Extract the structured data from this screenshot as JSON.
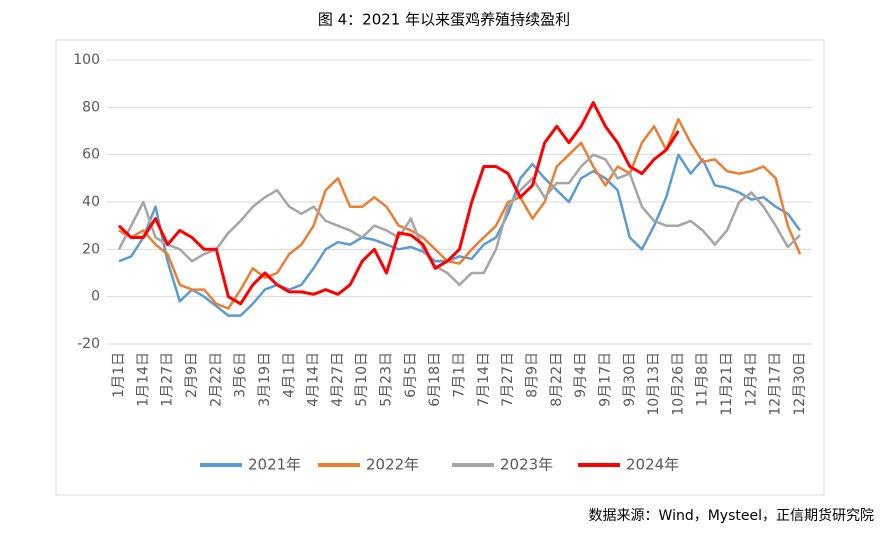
{
  "chart_data": {
    "type": "line",
    "title": "图 4：2021 年以来蛋鸡养殖持续盈利",
    "source": "数据来源：Wind，Mysteel，正信期货研究院",
    "categories": [
      "1月1日",
      null,
      "1月14日",
      null,
      "1月27日",
      null,
      "2月9日",
      null,
      "2月22日",
      null,
      "3月6日",
      null,
      "3月19日",
      null,
      "4月1日",
      null,
      "4月14日",
      null,
      "4月27日",
      null,
      "5月10日",
      null,
      "5月23日",
      null,
      "6月5日",
      null,
      "6月18日",
      null,
      "7月1日",
      null,
      "7月14日",
      null,
      "7月27日",
      null,
      "8月9日",
      null,
      "8月22日",
      null,
      "9月4日",
      null,
      "9月17日",
      null,
      "9月30日",
      null,
      "10月13日",
      null,
      "10月26日",
      null,
      "11月8日",
      null,
      "11月21日",
      null,
      "12月4日",
      null,
      "12月17日",
      null,
      "12月30日"
    ],
    "series": [
      {
        "name": "2021年",
        "color": "#5b9bd5",
        "values": [
          15,
          17,
          25,
          38,
          15,
          -2,
          3,
          0,
          -4,
          -8,
          -8,
          -3,
          3,
          5,
          3,
          5,
          12,
          20,
          23,
          22,
          25,
          24,
          22,
          20,
          21,
          19,
          15,
          15,
          17,
          16,
          22,
          25,
          35,
          50,
          56,
          50,
          45,
          40,
          50,
          53,
          50,
          45,
          25,
          20,
          30,
          42,
          60,
          52,
          58,
          47,
          46,
          44,
          41,
          42,
          38,
          35,
          28
        ]
      },
      {
        "name": "2022年",
        "color": "#ed7d31",
        "values": [
          28,
          25,
          28,
          22,
          18,
          5,
          3,
          3,
          -3,
          -5,
          3,
          12,
          8,
          10,
          18,
          22,
          30,
          45,
          50,
          38,
          38,
          42,
          38,
          30,
          28,
          25,
          20,
          15,
          14,
          20,
          25,
          30,
          40,
          42,
          33,
          40,
          55,
          60,
          65,
          55,
          47,
          55,
          52,
          65,
          72,
          62,
          75,
          65,
          57,
          58,
          53,
          52,
          53,
          55,
          50,
          30,
          18
        ]
      },
      {
        "name": "2023年",
        "color": "#a5a5a5",
        "values": [
          20,
          30,
          40,
          25,
          22,
          20,
          15,
          18,
          20,
          27,
          32,
          38,
          42,
          45,
          38,
          35,
          38,
          32,
          30,
          28,
          25,
          30,
          28,
          25,
          33,
          20,
          13,
          10,
          5,
          10,
          10,
          20,
          38,
          45,
          50,
          42,
          48,
          48,
          55,
          60,
          58,
          50,
          52,
          38,
          32,
          30,
          30,
          32,
          28,
          22,
          28,
          40,
          44,
          38,
          30,
          21,
          26
        ]
      },
      {
        "name": "2024年",
        "color": "#ff0000",
        "values": [
          30,
          25,
          25,
          33,
          22,
          28,
          25,
          20,
          20,
          0,
          -3,
          5,
          10,
          5,
          2,
          2,
          1,
          3,
          1,
          5,
          15,
          20,
          10,
          27,
          26,
          22,
          12,
          15,
          20,
          40,
          55,
          55,
          52,
          42,
          47,
          65,
          72,
          65,
          72,
          82,
          72,
          65,
          55,
          52,
          58,
          62,
          70,
          null,
          null,
          null,
          null,
          null,
          null,
          null,
          null,
          null,
          null
        ]
      }
    ],
    "ylim": [
      -20,
      100
    ],
    "yticks": [
      -20,
      0,
      20,
      40,
      60,
      80,
      100
    ],
    "grid": true,
    "legend": "bottom"
  }
}
